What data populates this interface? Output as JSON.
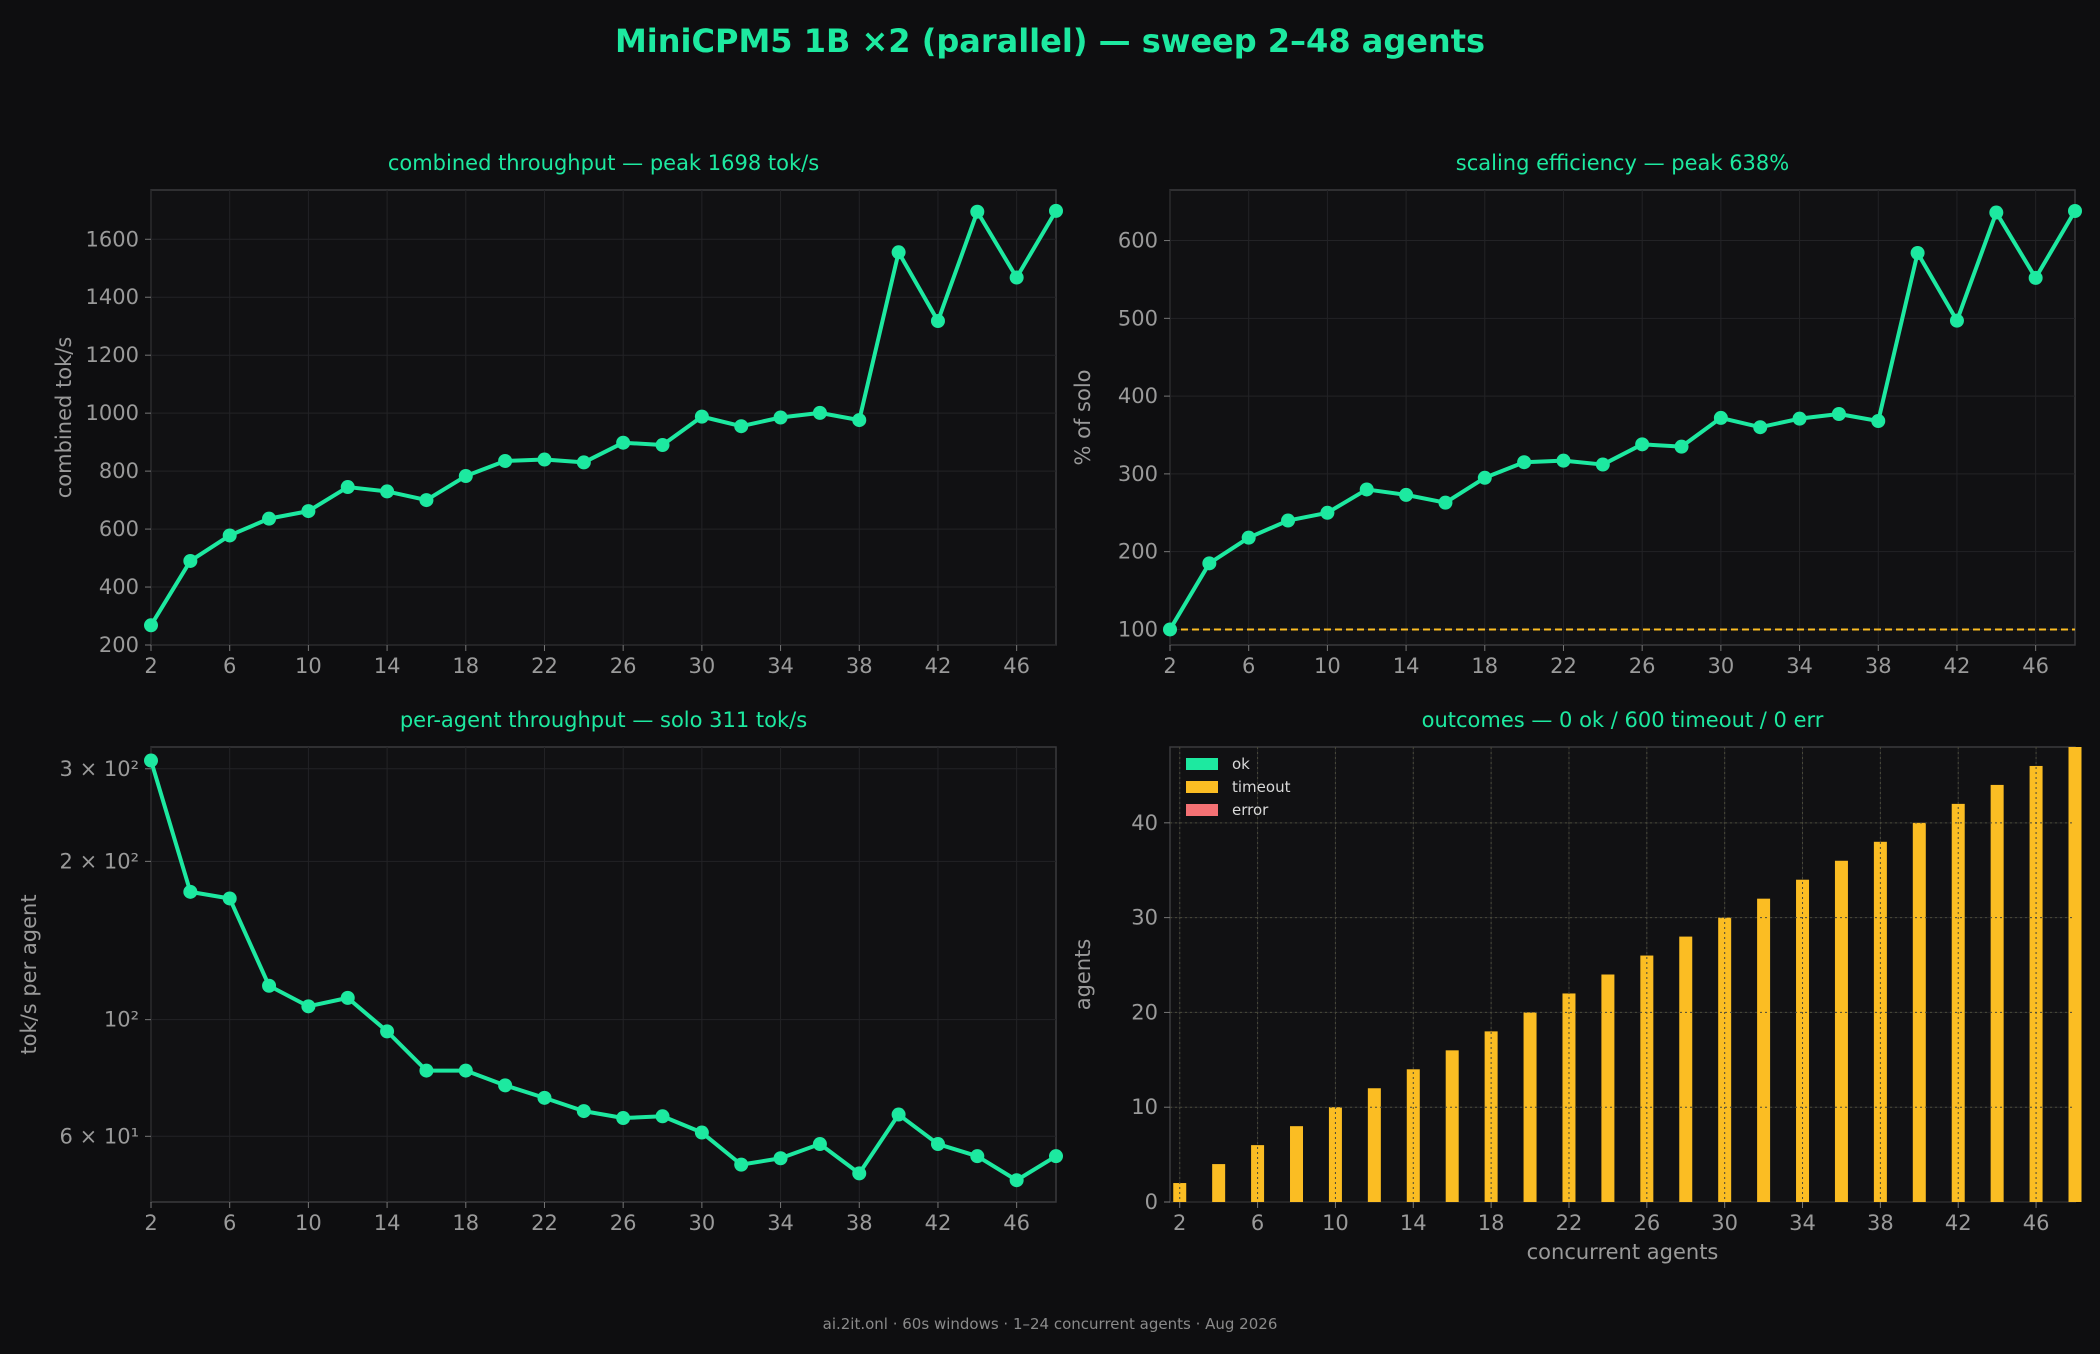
{
  "page": {
    "title": "MiniCPM5 1B ×2 (parallel) — sweep 2–48 agents",
    "footer": "ai.2it.onl · 60s windows · 1–24 concurrent agents · Aug 2026"
  },
  "colors": {
    "background": "#0e0e10",
    "panel": "#111113",
    "accent": "#1de9a0",
    "timeout": "#fbbd23",
    "error": "#f47174",
    "axis_text": "#9a9a9a",
    "grid": "#232326"
  },
  "chart_data": [
    {
      "type": "line",
      "title": "combined throughput — peak 1698 tok/s",
      "xlabel": "",
      "ylabel": "combined tok/s",
      "x": [
        2,
        4,
        6,
        8,
        10,
        12,
        14,
        16,
        18,
        20,
        22,
        24,
        26,
        28,
        30,
        32,
        34,
        36,
        38,
        40,
        42,
        44,
        46,
        48
      ],
      "values": [
        268,
        490,
        578,
        636,
        662,
        745,
        730,
        700,
        783,
        835,
        840,
        830,
        898,
        890,
        988,
        955,
        985,
        1001,
        976,
        1555,
        1318,
        1695,
        1468,
        1698
      ],
      "xlim": [
        2,
        48
      ],
      "ylim": [
        200,
        1770
      ],
      "xticks": [
        2,
        6,
        10,
        14,
        18,
        22,
        26,
        30,
        34,
        38,
        42,
        46
      ],
      "yticks": [
        200,
        400,
        600,
        800,
        1000,
        1200,
        1400,
        1600
      ],
      "grid": true
    },
    {
      "type": "line",
      "title": "scaling efficiency — peak 638%",
      "xlabel": "",
      "ylabel": "% of solo",
      "x": [
        2,
        4,
        6,
        8,
        10,
        12,
        14,
        16,
        18,
        20,
        22,
        24,
        26,
        28,
        30,
        32,
        34,
        36,
        38,
        40,
        42,
        44,
        46,
        48
      ],
      "values": [
        100,
        185,
        218,
        240,
        250,
        280,
        273,
        263,
        295,
        315,
        317,
        312,
        338,
        335,
        372,
        360,
        371,
        377,
        368,
        584,
        497,
        636,
        552,
        638
      ],
      "reference_line": 100,
      "xlim": [
        2,
        48
      ],
      "ylim": [
        80,
        665
      ],
      "xticks": [
        2,
        6,
        10,
        14,
        18,
        22,
        26,
        30,
        34,
        38,
        42,
        46
      ],
      "yticks": [
        100,
        200,
        300,
        400,
        500,
        600
      ],
      "grid": true
    },
    {
      "type": "line",
      "title": "per-agent throughput — solo 311 tok/s",
      "xlabel": "",
      "ylabel": "tok/s per agent",
      "scale_y": "log",
      "x": [
        2,
        4,
        6,
        8,
        10,
        12,
        14,
        16,
        18,
        20,
        22,
        24,
        26,
        28,
        30,
        32,
        34,
        36,
        38,
        40,
        42,
        44,
        46,
        48
      ],
      "values": [
        311,
        175,
        170,
        116,
        106,
        110,
        95,
        80,
        80,
        75,
        71,
        67,
        65,
        65.5,
        61,
        53,
        54.5,
        58,
        51,
        66,
        58,
        55,
        49.5,
        55
      ],
      "xlim": [
        2,
        48
      ],
      "ylim": [
        45,
        330
      ],
      "xticks": [
        2,
        6,
        10,
        14,
        18,
        22,
        26,
        30,
        34,
        38,
        42,
        46
      ],
      "yticks": [
        60,
        100,
        200,
        300
      ],
      "ytick_labels": [
        "6 × 10¹",
        "10²",
        "2 × 10²",
        "3 × 10²"
      ],
      "grid": true
    },
    {
      "type": "bar",
      "title": "outcomes — 0 ok / 600 timeout / 0 err",
      "xlabel": "concurrent agents",
      "ylabel": "agents",
      "stacked": true,
      "x": [
        2,
        4,
        6,
        8,
        10,
        12,
        14,
        16,
        18,
        20,
        22,
        24,
        26,
        28,
        30,
        32,
        34,
        36,
        38,
        40,
        42,
        44,
        46,
        48
      ],
      "series": [
        {
          "name": "ok",
          "values": [
            0,
            0,
            0,
            0,
            0,
            0,
            0,
            0,
            0,
            0,
            0,
            0,
            0,
            0,
            0,
            0,
            0,
            0,
            0,
            0,
            0,
            0,
            0,
            0
          ]
        },
        {
          "name": "timeout",
          "values": [
            2,
            4,
            6,
            8,
            10,
            12,
            14,
            16,
            18,
            20,
            22,
            24,
            26,
            28,
            30,
            32,
            34,
            36,
            38,
            40,
            42,
            44,
            46,
            48
          ]
        },
        {
          "name": "error",
          "values": [
            0,
            0,
            0,
            0,
            0,
            0,
            0,
            0,
            0,
            0,
            0,
            0,
            0,
            0,
            0,
            0,
            0,
            0,
            0,
            0,
            0,
            0,
            0,
            0
          ]
        }
      ],
      "xlim": [
        1.5,
        48
      ],
      "ylim": [
        0,
        48
      ],
      "xticks": [
        2,
        6,
        10,
        14,
        18,
        22,
        26,
        30,
        34,
        38,
        42,
        46
      ],
      "yticks": [
        0,
        10,
        20,
        30,
        40
      ],
      "legend": "top-left",
      "grid": true
    }
  ]
}
